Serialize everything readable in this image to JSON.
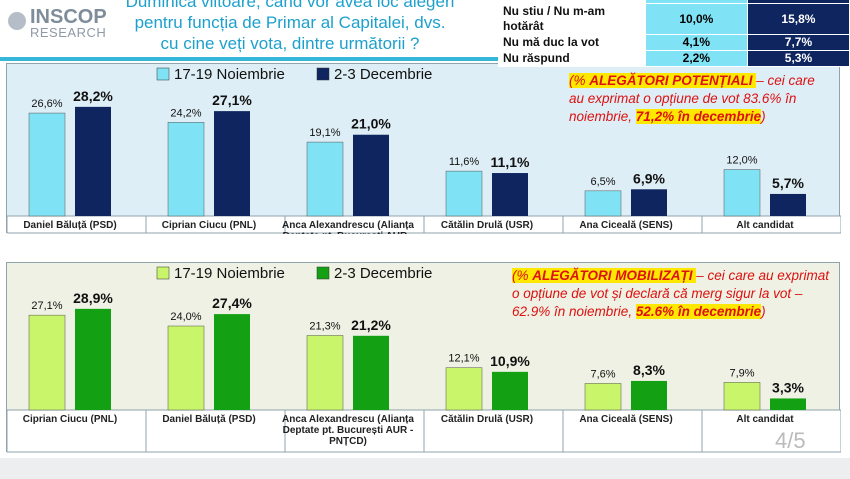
{
  "logo": {
    "line1": "INSCOP",
    "line2": "RESEARCH"
  },
  "question": [
    "Duminica viitoare, când vor avea loc alegeri",
    "pentru funcția de Primar al Capitalei, dvs.",
    "cu cine veți vota, dintre următorii ?"
  ],
  "side_table": [
    {
      "label": "Nu stiu / Nu m-am hotărât",
      "nov": "10,0%",
      "dec": "15,8%"
    },
    {
      "label": "Nu mă duc la vot",
      "nov": "4,1%",
      "dec": "7,7%"
    },
    {
      "label": "Nu răspund",
      "nov": "2,2%",
      "dec": "5,3%"
    }
  ],
  "page": "4/5",
  "chart_data": [
    {
      "type": "bar",
      "legend_position": "top",
      "categories": [
        "Daniel Băluță (PSD)",
        "Ciprian Ciucu (PNL)",
        "Anca Alexandrescu (Alianța Deptate pt. București AUR - PNȚCD)",
        "Cătălin Drulă (USR)",
        "Ana Ciceală (SENS)",
        "Alt candidat"
      ],
      "series": [
        {
          "name": "17-19 Noiembrie",
          "values": [
            26.6,
            24.2,
            19.1,
            11.6,
            6.5,
            12.0
          ],
          "labels": [
            "26,6%",
            "24,2%",
            "19,1%",
            "11,6%",
            "6,5%",
            "12,0%"
          ],
          "color": "#7fe3f5"
        },
        {
          "name": "2-3 Decembrie",
          "values": [
            28.2,
            27.1,
            21.0,
            11.1,
            6.9,
            5.7
          ],
          "labels": [
            "28,2%",
            "27,1%",
            "21,0%",
            "11,1%",
            "6,9%",
            "5,7%"
          ],
          "color": "#0e2560"
        }
      ],
      "note": {
        "part1": "(% ",
        "bold1": "ALEGĂTORI POTENȚIALI ",
        "part2": "– cei care au exprimat o opțiune de vot 83.6% în noiembrie, ",
        "bold2": "71,2% în decembrie",
        "part3": ")"
      }
    },
    {
      "type": "bar",
      "legend_position": "top",
      "categories": [
        "Ciprian Ciucu (PNL)",
        "Daniel Băluță (PSD)",
        "Anca Alexandrescu (Alianța Deptate pt. București AUR - PNȚCD)",
        "Cătălin Drulă (USR)",
        "Ana Ciceală (SENS)",
        "Alt candidat"
      ],
      "series": [
        {
          "name": "17-19 Noiembrie",
          "values": [
            27.1,
            24.0,
            21.3,
            12.1,
            7.6,
            7.9
          ],
          "labels": [
            "27,1%",
            "24,0%",
            "21,3%",
            "12,1%",
            "7,6%",
            "7,9%"
          ],
          "color": "#c8f56a"
        },
        {
          "name": "2-3 Decembrie",
          "values": [
            28.9,
            27.4,
            21.2,
            10.9,
            8.3,
            3.3
          ],
          "labels": [
            "28,9%",
            "27,4%",
            "21,2%",
            "10,9%",
            "8,3%",
            "3,3%"
          ],
          "color": "#13a113"
        }
      ],
      "note": {
        "part1": "(% ",
        "bold1": "ALEGĂTORI MOBILIZAȚI ",
        "part2": "– cei care au exprimat o opțiune de vot și declară că merg sigur la vot – 62.9% în noiembrie, ",
        "bold2": "52.6% în decembrie",
        "part3": ")"
      }
    }
  ]
}
